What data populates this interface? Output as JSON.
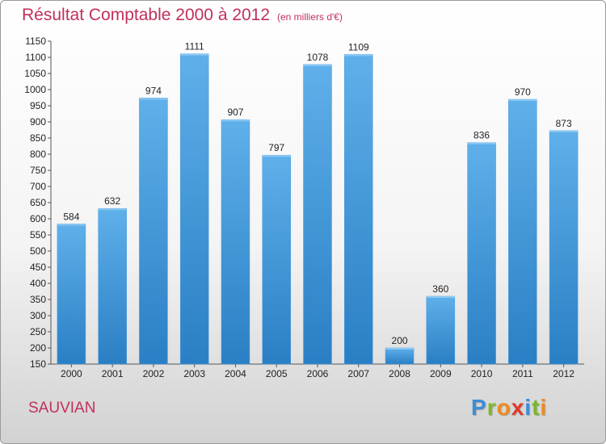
{
  "title": "Résultat Comptable 2000 à 2012",
  "unit_note": "(en milliers d'€)",
  "commune": "SAUVIAN",
  "brand": {
    "text": "Proxiti",
    "letters": [
      {
        "ch": "P",
        "color": "#3b8ed6"
      },
      {
        "ch": "r",
        "color": "#7ab82a"
      },
      {
        "ch": "o",
        "color": "#f08a1c"
      },
      {
        "ch": "x",
        "color": "#e03a2a"
      },
      {
        "ch": "i",
        "color": "#3b8ed6"
      },
      {
        "ch": "t",
        "color": "#7ab82a"
      },
      {
        "ch": "i",
        "color": "#f08a1c"
      }
    ]
  },
  "colors": {
    "bar_top": "#5fb0ea",
    "bar_bottom": "#2a7fc4",
    "title": "#c0305a"
  },
  "chart_data": {
    "type": "bar",
    "title": "Résultat Comptable 2000 à 2012",
    "xlabel": "",
    "ylabel": "",
    "categories": [
      "2000",
      "2001",
      "2002",
      "2003",
      "2004",
      "2005",
      "2006",
      "2007",
      "2008",
      "2009",
      "2010",
      "2011",
      "2012"
    ],
    "values": [
      584,
      632,
      974,
      1111,
      907,
      797,
      1078,
      1109,
      200,
      360,
      836,
      970,
      873
    ],
    "ylim": [
      150,
      1150
    ],
    "yticks": [
      150,
      200,
      250,
      300,
      350,
      400,
      450,
      500,
      550,
      600,
      650,
      700,
      750,
      800,
      850,
      900,
      950,
      1000,
      1050,
      1100,
      1150
    ],
    "grid": false,
    "legend": "none"
  }
}
